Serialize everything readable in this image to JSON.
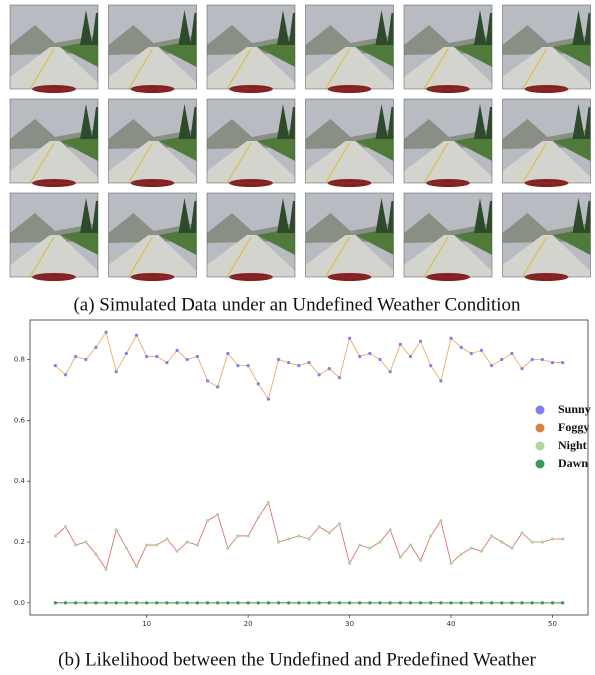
{
  "images_caption": "(a) Simulated Data under an Undefined Weather Condition",
  "chart_data": {
    "type": "line",
    "title": "(b) Likelihood between the Undefined and Predefined Weather",
    "x": [
      1,
      2,
      3,
      4,
      5,
      6,
      7,
      8,
      9,
      10,
      11,
      12,
      13,
      14,
      15,
      16,
      17,
      18,
      19,
      20,
      21,
      22,
      23,
      24,
      25,
      26,
      27,
      28,
      29,
      30,
      31,
      32,
      33,
      34,
      35,
      36,
      37,
      38,
      39,
      40,
      41,
      42,
      43,
      44,
      45,
      46,
      47,
      48,
      49,
      50,
      51
    ],
    "series": [
      {
        "name": "Sunny",
        "color": "#8080e8",
        "line_color": "#f0a050",
        "values": [
          0.78,
          0.75,
          0.81,
          0.8,
          0.84,
          0.89,
          0.76,
          0.82,
          0.88,
          0.81,
          0.81,
          0.79,
          0.83,
          0.8,
          0.81,
          0.73,
          0.71,
          0.82,
          0.78,
          0.78,
          0.72,
          0.67,
          0.8,
          0.79,
          0.78,
          0.79,
          0.75,
          0.77,
          0.74,
          0.87,
          0.81,
          0.82,
          0.8,
          0.76,
          0.85,
          0.81,
          0.86,
          0.78,
          0.73,
          0.87,
          0.84,
          0.82,
          0.83,
          0.78,
          0.8,
          0.82,
          0.77,
          0.8,
          0.8,
          0.79,
          0.79
        ]
      },
      {
        "name": "Foggy",
        "color": "#d2873a",
        "line_color": "#d2873a",
        "values": [
          0,
          0,
          0,
          0,
          0,
          0,
          0,
          0,
          0,
          0,
          0,
          0,
          0,
          0,
          0,
          0,
          0,
          0,
          0,
          0,
          0,
          0,
          0,
          0,
          0,
          0,
          0,
          0,
          0,
          0,
          0,
          0,
          0,
          0,
          0,
          0,
          0,
          0,
          0,
          0,
          0,
          0,
          0,
          0,
          0,
          0,
          0,
          0,
          0,
          0,
          0
        ]
      },
      {
        "name": "Night",
        "color": "#a8d8a0",
        "line_color": "#e06060",
        "values": [
          0.22,
          0.25,
          0.19,
          0.2,
          0.16,
          0.11,
          0.24,
          0.18,
          0.12,
          0.19,
          0.19,
          0.21,
          0.17,
          0.2,
          0.19,
          0.27,
          0.29,
          0.18,
          0.22,
          0.22,
          0.28,
          0.33,
          0.2,
          0.21,
          0.22,
          0.21,
          0.25,
          0.23,
          0.26,
          0.13,
          0.19,
          0.18,
          0.2,
          0.24,
          0.15,
          0.19,
          0.14,
          0.22,
          0.27,
          0.13,
          0.16,
          0.18,
          0.17,
          0.22,
          0.2,
          0.18,
          0.23,
          0.2,
          0.2,
          0.21,
          0.21
        ]
      },
      {
        "name": "Dawn",
        "color": "#3a9a5a",
        "line_color": "#3a9a5a",
        "values": [
          0,
          0,
          0,
          0,
          0,
          0,
          0,
          0,
          0,
          0,
          0,
          0,
          0,
          0,
          0,
          0,
          0,
          0,
          0,
          0,
          0,
          0,
          0,
          0,
          0,
          0,
          0,
          0,
          0,
          0,
          0,
          0,
          0,
          0,
          0,
          0,
          0,
          0,
          0,
          0,
          0,
          0,
          0,
          0,
          0,
          0,
          0,
          0,
          0,
          0,
          0
        ]
      }
    ],
    "xlim": [
      -1.5,
      53.5
    ],
    "xticks": [
      10,
      20,
      30,
      40,
      50
    ],
    "ylim": [
      -0.04,
      0.93
    ],
    "yticks": [
      {
        "value": 0,
        "label": "0.0"
      },
      {
        "value": 0.2,
        "label": "0.2"
      },
      {
        "value": 0.4,
        "label": "0.4"
      },
      {
        "value": 0.6,
        "label": "0.6"
      },
      {
        "value": 0.8,
        "label": "0.8"
      }
    ],
    "legend": "right"
  }
}
